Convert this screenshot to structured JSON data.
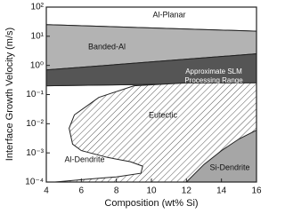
{
  "chart_data": {
    "type": "region-map",
    "x_label": "Composition (wt% Si)",
    "y_label": "Interface Growth Velocity (m/s)",
    "xlim": [
      4,
      16
    ],
    "xticks": [
      4,
      6,
      8,
      10,
      12,
      14,
      16
    ],
    "ylim": [
      0.0001,
      100
    ],
    "log_y": true,
    "yticks": [
      {
        "value": 0.0001,
        "label": "10⁻⁴"
      },
      {
        "value": 0.001,
        "label": "10⁻³"
      },
      {
        "value": 0.01,
        "label": "10⁻²"
      },
      {
        "value": 0.1,
        "label": "10⁻¹"
      },
      {
        "value": 1,
        "label": "10⁰"
      },
      {
        "value": 10,
        "label": "10¹"
      },
      {
        "value": 100,
        "label": "10²"
      }
    ],
    "regions": [
      {
        "label": "Al-Planar",
        "color": "#ffffff",
        "x": [
          4,
          16,
          16,
          4
        ],
        "y": [
          100,
          100,
          15,
          25
        ]
      },
      {
        "label": "Banded-Al",
        "color": "#b3b3b3",
        "x": [
          4,
          16,
          16,
          4
        ],
        "y": [
          25,
          15,
          2.5,
          0.7
        ]
      },
      {
        "label": "Al-Dendrite",
        "color": "#ffffff",
        "x": [
          4,
          16,
          16,
          4
        ],
        "y": [
          0.2,
          0.25,
          0.0001,
          0.0001
        ]
      },
      {
        "label_lines": [
          "Approximate SLM",
          "Processing Range"
        ],
        "color": "#555555",
        "x": [
          4,
          16,
          16,
          4
        ],
        "y": [
          0.7,
          2.5,
          0.25,
          0.2
        ]
      },
      {
        "label": "Eutectic",
        "color": "#555555",
        "hatched": true,
        "x": [
          16,
          12,
          9,
          7,
          5.6,
          5.3,
          5.5,
          6,
          7.5,
          8.8,
          9.5,
          9.4,
          8,
          6,
          4.5,
          16
        ],
        "y": [
          0.25,
          0.25,
          0.2,
          0.08,
          0.02,
          0.007,
          0.002,
          0.0012,
          0.0007,
          0.0005,
          0.00035,
          0.0002,
          0.00015,
          0.00012,
          0.0001,
          0.0001
        ]
      },
      {
        "label": "Si-Dendrite",
        "color": "#a6a6a6",
        "x": [
          12,
          13,
          14,
          15,
          16,
          16
        ],
        "y": [
          0.0001,
          0.0004,
          0.0012,
          0.003,
          0.006,
          0.0001
        ]
      }
    ]
  }
}
